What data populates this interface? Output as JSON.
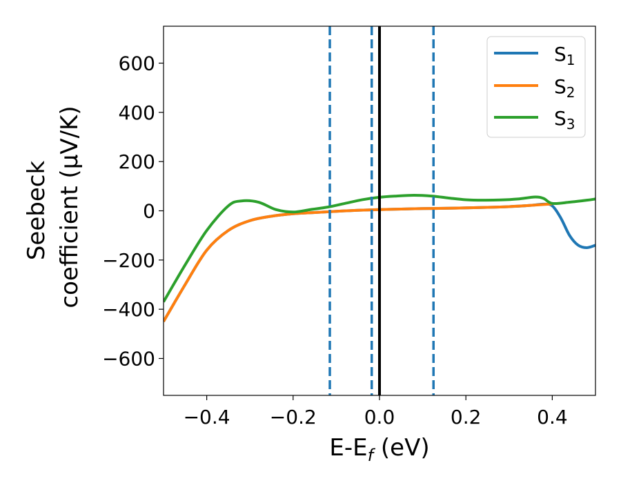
{
  "chart_data": {
    "type": "line",
    "xlabel": "E-E",
    "xlabel_sub": "f",
    "xlabel_unit": " (eV)",
    "ylabel_line1": "Seebeck",
    "ylabel_line2": "coefficient  (μV/K)",
    "xlim": [
      -0.5,
      0.5
    ],
    "ylim": [
      -750,
      750
    ],
    "xticks": [
      -0.4,
      -0.2,
      0.0,
      0.2,
      0.4
    ],
    "xtick_labels": [
      "−0.4",
      "−0.2",
      "0.0",
      "0.2",
      "0.4"
    ],
    "yticks": [
      -600,
      -400,
      -200,
      0,
      200,
      400,
      600
    ],
    "ytick_labels": [
      "−600",
      "−400",
      "−200",
      "0",
      "200",
      "400",
      "600"
    ],
    "grid": false,
    "legend_position": "top-right",
    "vlines": [
      {
        "x": -0.115,
        "style": "dashed",
        "color": "#1f77b4"
      },
      {
        "x": -0.018,
        "style": "dashed",
        "color": "#1f77b4"
      },
      {
        "x": 0.0,
        "style": "solid",
        "color": "#000000"
      },
      {
        "x": 0.125,
        "style": "dashed",
        "color": "#1f77b4"
      }
    ],
    "series": [
      {
        "name": "S",
        "name_sub": "1",
        "color": "#1f77b4",
        "x": [
          -0.5,
          -0.45,
          -0.4,
          -0.35,
          -0.3,
          -0.25,
          -0.2,
          -0.15,
          -0.1,
          -0.05,
          0.0,
          0.05,
          0.1,
          0.15,
          0.2,
          0.25,
          0.3,
          0.35,
          0.38,
          0.4,
          0.42,
          0.44,
          0.46,
          0.48,
          0.5
        ],
        "values": [
          -450,
          -300,
          -160,
          -80,
          -40,
          -22,
          -12,
          -7,
          -2,
          2,
          5,
          7,
          9,
          10,
          12,
          14,
          17,
          22,
          27,
          20,
          -30,
          -100,
          -140,
          -150,
          -140
        ]
      },
      {
        "name": "S",
        "name_sub": "2",
        "color": "#ff7f0e",
        "x": [
          -0.5,
          -0.45,
          -0.4,
          -0.35,
          -0.3,
          -0.25,
          -0.2,
          -0.15,
          -0.1,
          -0.05,
          0.0,
          0.05,
          0.1,
          0.15,
          0.2,
          0.25,
          0.3,
          0.35,
          0.4
        ],
        "values": [
          -450,
          -300,
          -160,
          -80,
          -40,
          -22,
          -12,
          -7,
          -2,
          2,
          5,
          7,
          9,
          10,
          12,
          14,
          17,
          22,
          28
        ]
      },
      {
        "name": "S",
        "name_sub": "3",
        "color": "#2ca02c",
        "x": [
          -0.5,
          -0.45,
          -0.4,
          -0.35,
          -0.32,
          -0.28,
          -0.24,
          -0.2,
          -0.16,
          -0.12,
          -0.08,
          -0.04,
          0.0,
          0.04,
          0.08,
          0.12,
          0.16,
          0.2,
          0.24,
          0.28,
          0.32,
          0.36,
          0.38,
          0.4,
          0.44,
          0.48,
          0.5
        ],
        "values": [
          -370,
          -220,
          -80,
          20,
          40,
          35,
          5,
          -5,
          5,
          15,
          30,
          45,
          55,
          60,
          63,
          60,
          52,
          45,
          43,
          44,
          48,
          56,
          50,
          30,
          35,
          43,
          48
        ]
      }
    ]
  }
}
